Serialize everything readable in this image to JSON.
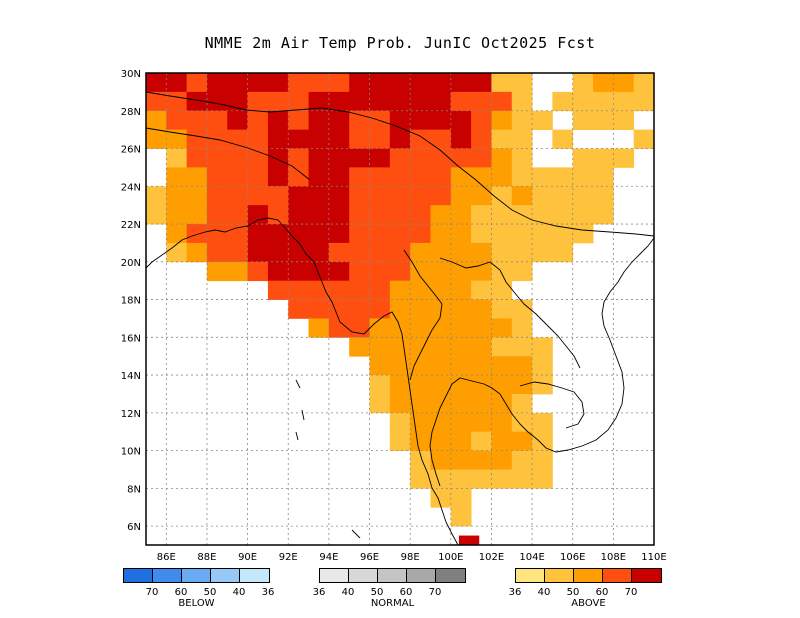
{
  "title": "NMME 2m Air Temp Prob. JunIC  Oct2025 Fcst",
  "map": {
    "lon_range": [
      85,
      110
    ],
    "lat_range": [
      5,
      30
    ],
    "lon_ticks": [
      "86E",
      "88E",
      "90E",
      "92E",
      "94E",
      "96E",
      "98E",
      "100E",
      "102E",
      "104E",
      "106E",
      "108E",
      "110E"
    ],
    "lat_ticks": [
      "30N",
      "28N",
      "26N",
      "24N",
      "22N",
      "20N",
      "18N",
      "16N",
      "14N",
      "12N",
      "10N",
      "8N",
      "6N"
    ],
    "grid": true
  },
  "legend": {
    "below": {
      "label": "BELOW",
      "colors": [
        "#1f6fe0",
        "#3f8cec",
        "#6aaaf2",
        "#98c8f6",
        "#c3e8fb"
      ],
      "ticks": [
        "70",
        "60",
        "50",
        "40",
        "36"
      ]
    },
    "normal": {
      "label": "NORMAL",
      "colors": [
        "#e8e8e8",
        "#d8d8d8",
        "#c4c4c4",
        "#a8a8a8",
        "#808080"
      ],
      "ticks": [
        "36",
        "40",
        "50",
        "60",
        "70"
      ]
    },
    "above": {
      "label": "ABOVE",
      "colors": [
        "#ffe57f",
        "#ffc23d",
        "#ff9e00",
        "#ff4f10",
        "#c80000"
      ],
      "ticks": [
        "36",
        "40",
        "50",
        "60",
        "70"
      ]
    }
  }
}
